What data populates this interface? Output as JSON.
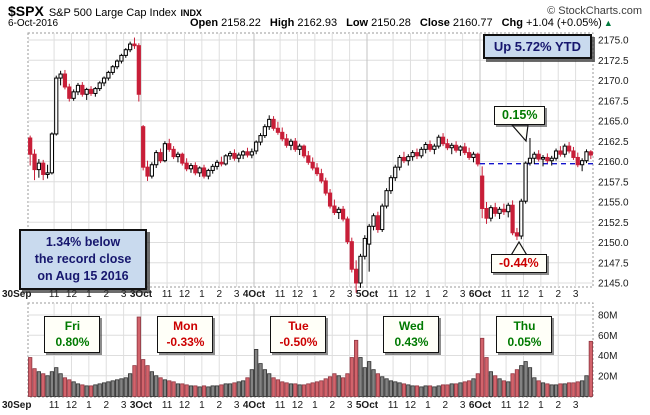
{
  "header": {
    "symbol": "$SPX",
    "name": "S&P 500 Large Cap Index",
    "exchange": "INDX",
    "copyright": "© StockCharts.com",
    "date": "6-Oct-2016",
    "quote": {
      "open_label": "Open",
      "open": "2158.22",
      "high_label": "High",
      "high": "2162.93",
      "low_label": "Low",
      "low": "2150.28",
      "close_label": "Close",
      "close": "2160.77",
      "chg_label": "Chg",
      "chg": "+1.04 (+0.05%)",
      "chg_arrow": "▲"
    }
  },
  "annotations": {
    "ytd_box_text": "Up 5.72% YTD",
    "record_box_lines": [
      "1.34% below",
      "the record close",
      "on Aug 15 2016"
    ],
    "high_callout": "0.15%",
    "low_callout": "-0.44%",
    "reference_line_price": 2159.73
  },
  "chart_data": {
    "type": "candlestick+volume",
    "title": "$SPX intraday 15-minute bars, 30-Sep-2016 to 6-Oct-2016",
    "price_axis": {
      "min": 2145.0,
      "max": 2175.0,
      "step": 2.5,
      "tick_labels": [
        "2175.0",
        "2172.5",
        "2170.0",
        "2167.5",
        "2165.0",
        "2162.5",
        "2160.0",
        "2157.5",
        "2155.0",
        "2152.5",
        "2150.0",
        "2147.5",
        "2145.0"
      ]
    },
    "volume_axis": {
      "tick_labels": [
        "80M",
        "60M",
        "40M",
        "20M"
      ],
      "tick_values": [
        80,
        60,
        40,
        20
      ],
      "unit": "millions"
    },
    "hour_labels": [
      "11",
      "12",
      "1",
      "2",
      "3"
    ],
    "days": [
      {
        "label": "30Sep",
        "summary": {
          "day": "Fri",
          "pct": "0.80%",
          "color": "green"
        },
        "candles": [
          [
            2162.9,
            2163.2,
            2159.5,
            2160.9
          ],
          [
            2160.9,
            2161.5,
            2157.7,
            2159.0
          ],
          [
            2159.0,
            2160.3,
            2158.0,
            2159.8
          ],
          [
            2159.8,
            2160.2,
            2157.7,
            2158.4
          ],
          [
            2158.4,
            2159.6,
            2157.9,
            2158.6
          ],
          [
            2158.6,
            2163.6,
            2158.4,
            2163.4
          ],
          [
            2163.4,
            2170.6,
            2163.2,
            2170.3
          ],
          [
            2170.3,
            2171.2,
            2169.4,
            2170.8
          ],
          [
            2170.8,
            2171.3,
            2168.9,
            2169.2
          ],
          [
            2169.2,
            2169.6,
            2167.4,
            2167.8
          ],
          [
            2167.8,
            2168.9,
            2167.5,
            2168.6
          ],
          [
            2168.6,
            2169.7,
            2168.2,
            2169.4
          ],
          [
            2169.4,
            2169.8,
            2168.0,
            2168.3
          ],
          [
            2168.3,
            2169.1,
            2167.6,
            2168.9
          ],
          [
            2168.9,
            2169.3,
            2168.1,
            2168.4
          ],
          [
            2168.4,
            2169.2,
            2168.0,
            2169.0
          ],
          [
            2169.0,
            2169.9,
            2168.7,
            2169.7
          ],
          [
            2169.7,
            2170.5,
            2169.3,
            2170.3
          ],
          [
            2170.3,
            2171.2,
            2170.0,
            2171.0
          ],
          [
            2171.0,
            2171.9,
            2170.7,
            2171.7
          ],
          [
            2171.7,
            2172.6,
            2171.4,
            2172.4
          ],
          [
            2172.4,
            2173.3,
            2172.1,
            2173.1
          ],
          [
            2173.1,
            2174.0,
            2172.8,
            2173.8
          ],
          [
            2173.8,
            2174.8,
            2173.5,
            2174.5
          ],
          [
            2174.5,
            2175.3,
            2173.9,
            2174.3
          ],
          [
            2174.3,
            2174.6,
            2167.4,
            2168.3
          ]
        ],
        "volumes": [
          38,
          27,
          24,
          22,
          20,
          24,
          28,
          22,
          18,
          16,
          14,
          12,
          11,
          10,
          10,
          11,
          12,
          13,
          14,
          15,
          16,
          17,
          18,
          22,
          30,
          78
        ]
      },
      {
        "label": "3Oct",
        "summary": {
          "day": "Mon",
          "pct": "-0.33%",
          "color": "red"
        },
        "candles": [
          [
            2164.3,
            2164.5,
            2158.9,
            2159.3
          ],
          [
            2159.3,
            2160.1,
            2157.6,
            2158.2
          ],
          [
            2158.2,
            2159.9,
            2157.9,
            2159.6
          ],
          [
            2159.6,
            2161.4,
            2159.2,
            2161.1
          ],
          [
            2161.1,
            2161.6,
            2159.8,
            2160.1
          ],
          [
            2160.1,
            2162.5,
            2159.9,
            2162.2
          ],
          [
            2162.2,
            2162.8,
            2161.2,
            2161.5
          ],
          [
            2161.5,
            2161.9,
            2160.3,
            2160.6
          ],
          [
            2160.6,
            2161.2,
            2159.9,
            2160.9
          ],
          [
            2160.9,
            2161.1,
            2159.5,
            2159.8
          ],
          [
            2159.8,
            2160.4,
            2158.8,
            2159.1
          ],
          [
            2159.1,
            2159.8,
            2158.6,
            2159.5
          ],
          [
            2159.5,
            2159.9,
            2158.3,
            2158.6
          ],
          [
            2158.6,
            2159.4,
            2158.1,
            2159.2
          ],
          [
            2159.2,
            2159.6,
            2157.9,
            2158.2
          ],
          [
            2158.2,
            2159.1,
            2157.8,
            2158.9
          ],
          [
            2158.9,
            2159.7,
            2158.5,
            2159.4
          ],
          [
            2159.4,
            2160.2,
            2159.0,
            2159.9
          ],
          [
            2159.9,
            2160.6,
            2159.4,
            2159.7
          ],
          [
            2159.7,
            2160.9,
            2159.5,
            2160.7
          ],
          [
            2160.7,
            2161.3,
            2160.2,
            2161.0
          ],
          [
            2161.0,
            2161.5,
            2160.1,
            2160.4
          ],
          [
            2160.4,
            2161.1,
            2159.9,
            2160.8
          ],
          [
            2160.8,
            2161.4,
            2160.3,
            2161.2
          ],
          [
            2161.2,
            2161.7,
            2160.5,
            2160.8
          ],
          [
            2160.8,
            2161.6,
            2160.4,
            2161.2
          ]
        ],
        "volumes": [
          36,
          30,
          24,
          20,
          18,
          16,
          15,
          14,
          12,
          12,
          11,
          10,
          10,
          9,
          10,
          9,
          10,
          10,
          11,
          12,
          12,
          13,
          14,
          15,
          18,
          26
        ]
      },
      {
        "label": "4Oct",
        "summary": {
          "day": "Tue",
          "pct": "-0.50%",
          "color": "red"
        },
        "candles": [
          [
            2161.3,
            2162.6,
            2160.9,
            2162.4
          ],
          [
            2162.4,
            2163.5,
            2162.0,
            2163.2
          ],
          [
            2163.2,
            2164.6,
            2162.9,
            2164.3
          ],
          [
            2164.3,
            2165.7,
            2163.9,
            2165.2
          ],
          [
            2165.2,
            2165.6,
            2163.8,
            2164.1
          ],
          [
            2164.1,
            2164.9,
            2163.3,
            2163.6
          ],
          [
            2163.6,
            2164.2,
            2162.5,
            2162.8
          ],
          [
            2162.8,
            2163.4,
            2161.7,
            2162.0
          ],
          [
            2162.0,
            2162.8,
            2161.4,
            2162.5
          ],
          [
            2162.5,
            2162.9,
            2161.2,
            2161.5
          ],
          [
            2161.5,
            2162.2,
            2160.8,
            2161.9
          ],
          [
            2161.9,
            2162.1,
            2160.4,
            2160.7
          ],
          [
            2160.7,
            2161.3,
            2159.6,
            2159.9
          ],
          [
            2159.9,
            2160.5,
            2158.9,
            2159.2
          ],
          [
            2159.2,
            2159.8,
            2158.2,
            2158.5
          ],
          [
            2158.5,
            2159.1,
            2157.3,
            2157.6
          ],
          [
            2157.6,
            2158.0,
            2155.8,
            2156.1
          ],
          [
            2156.1,
            2156.6,
            2154.2,
            2154.5
          ],
          [
            2154.5,
            2155.3,
            2153.4,
            2153.7
          ],
          [
            2153.7,
            2154.4,
            2152.9,
            2154.1
          ],
          [
            2154.1,
            2154.5,
            2152.6,
            2152.9
          ],
          [
            2152.9,
            2153.2,
            2149.8,
            2150.1
          ],
          [
            2150.1,
            2150.6,
            2146.3,
            2146.7
          ],
          [
            2146.7,
            2147.8,
            2143.8,
            2145.0
          ],
          [
            2145.0,
            2148.6,
            2144.4,
            2148.3
          ],
          [
            2148.3,
            2150.9,
            2147.9,
            2150.5
          ]
        ],
        "volumes": [
          46,
          32,
          26,
          22,
          18,
          16,
          14,
          13,
          12,
          12,
          11,
          11,
          12,
          13,
          14,
          15,
          17,
          19,
          22,
          20,
          18,
          22,
          38,
          55,
          38,
          28
        ]
      },
      {
        "label": "5Oct",
        "summary": {
          "day": "Wed",
          "pct": "0.43%",
          "color": "green"
        },
        "candles": [
          [
            2149.8,
            2152.3,
            2146.4,
            2152.0
          ],
          [
            2152.0,
            2153.6,
            2151.5,
            2153.3
          ],
          [
            2153.3,
            2153.8,
            2151.2,
            2151.6
          ],
          [
            2151.6,
            2154.8,
            2151.3,
            2154.5
          ],
          [
            2154.5,
            2156.7,
            2154.2,
            2156.4
          ],
          [
            2156.4,
            2158.3,
            2156.0,
            2158.0
          ],
          [
            2158.0,
            2159.6,
            2157.6,
            2159.3
          ],
          [
            2159.3,
            2160.8,
            2158.9,
            2160.5
          ],
          [
            2160.5,
            2161.2,
            2159.8,
            2160.1
          ],
          [
            2160.1,
            2160.9,
            2159.5,
            2160.6
          ],
          [
            2160.6,
            2161.4,
            2160.1,
            2161.1
          ],
          [
            2161.1,
            2161.6,
            2160.3,
            2160.7
          ],
          [
            2160.7,
            2161.8,
            2160.4,
            2161.5
          ],
          [
            2161.5,
            2162.4,
            2161.0,
            2162.1
          ],
          [
            2162.1,
            2162.6,
            2161.2,
            2161.5
          ],
          [
            2161.5,
            2162.2,
            2160.9,
            2161.9
          ],
          [
            2161.9,
            2163.3,
            2161.6,
            2163.0
          ],
          [
            2163.0,
            2163.5,
            2161.9,
            2162.2
          ],
          [
            2162.2,
            2162.8,
            2161.4,
            2161.7
          ],
          [
            2161.7,
            2162.3,
            2160.9,
            2162.0
          ],
          [
            2162.0,
            2162.5,
            2161.1,
            2161.4
          ],
          [
            2161.4,
            2162.0,
            2160.7,
            2161.8
          ],
          [
            2161.8,
            2162.3,
            2160.8,
            2161.1
          ],
          [
            2161.1,
            2161.7,
            2160.2,
            2160.5
          ],
          [
            2160.5,
            2161.2,
            2159.9,
            2160.9
          ],
          [
            2160.9,
            2161.1,
            2159.4,
            2159.7
          ]
        ],
        "volumes": [
          34,
          26,
          22,
          19,
          17,
          15,
          14,
          13,
          12,
          11,
          10,
          10,
          9,
          10,
          10,
          9,
          10,
          11,
          11,
          12,
          12,
          13,
          14,
          15,
          17,
          22
        ]
      },
      {
        "label": "6Oct",
        "summary": {
          "day": "Thu",
          "pct": "0.05%",
          "color": "green"
        },
        "candles": [
          [
            2158.2,
            2159.4,
            2153.0,
            2154.2
          ],
          [
            2154.2,
            2155.0,
            2152.3,
            2153.0
          ],
          [
            2153.0,
            2154.6,
            2152.6,
            2154.3
          ],
          [
            2154.3,
            2154.9,
            2153.2,
            2153.6
          ],
          [
            2153.6,
            2154.4,
            2152.9,
            2154.1
          ],
          [
            2154.1,
            2154.8,
            2153.4,
            2153.8
          ],
          [
            2153.8,
            2154.9,
            2153.1,
            2154.6
          ],
          [
            2154.6,
            2155.2,
            2150.9,
            2151.2
          ],
          [
            2151.2,
            2151.8,
            2150.3,
            2150.8
          ],
          [
            2150.8,
            2155.4,
            2150.4,
            2155.1
          ],
          [
            2155.1,
            2160.0,
            2154.8,
            2159.8
          ],
          [
            2159.8,
            2162.9,
            2159.5,
            2160.4
          ],
          [
            2160.4,
            2161.2,
            2159.7,
            2160.9
          ],
          [
            2160.9,
            2161.4,
            2160.0,
            2160.3
          ],
          [
            2160.3,
            2160.8,
            2159.4,
            2160.5
          ],
          [
            2160.5,
            2161.0,
            2159.8,
            2160.1
          ],
          [
            2160.1,
            2160.7,
            2159.5,
            2160.4
          ],
          [
            2160.4,
            2161.6,
            2160.1,
            2161.3
          ],
          [
            2161.3,
            2161.9,
            2160.6,
            2160.9
          ],
          [
            2160.9,
            2162.2,
            2160.5,
            2161.9
          ],
          [
            2161.9,
            2162.4,
            2161.0,
            2161.3
          ],
          [
            2161.3,
            2161.8,
            2160.2,
            2160.5
          ],
          [
            2160.5,
            2161.1,
            2159.3,
            2159.6
          ],
          [
            2159.6,
            2160.4,
            2158.8,
            2160.1
          ],
          [
            2160.1,
            2161.5,
            2159.8,
            2161.2
          ],
          [
            2161.2,
            2161.4,
            2160.3,
            2160.8
          ]
        ],
        "volumes": [
          57,
          38,
          24,
          20,
          17,
          15,
          14,
          22,
          26,
          30,
          34,
          28,
          18,
          15,
          13,
          12,
          11,
          11,
          12,
          12,
          13,
          13,
          14,
          15,
          20,
          54
        ]
      }
    ]
  },
  "colors": {
    "candle_down": "#c81e38",
    "candle_up_fill": "#ffffff",
    "candle_up_stroke": "#000000",
    "vol_up_fill": "#838383",
    "vol_up_stroke": "#2e2e2e",
    "vol_down_fill": "#d2636b",
    "vol_down_stroke": "#8f3540",
    "grid": "#dedede",
    "day_grid": "#c3c3c3",
    "panel_border": "#9a9a9a",
    "reference_line": "#1414cc",
    "axis_text": "#1a1a1a",
    "green": "#007a00",
    "red": "#cc0000"
  }
}
